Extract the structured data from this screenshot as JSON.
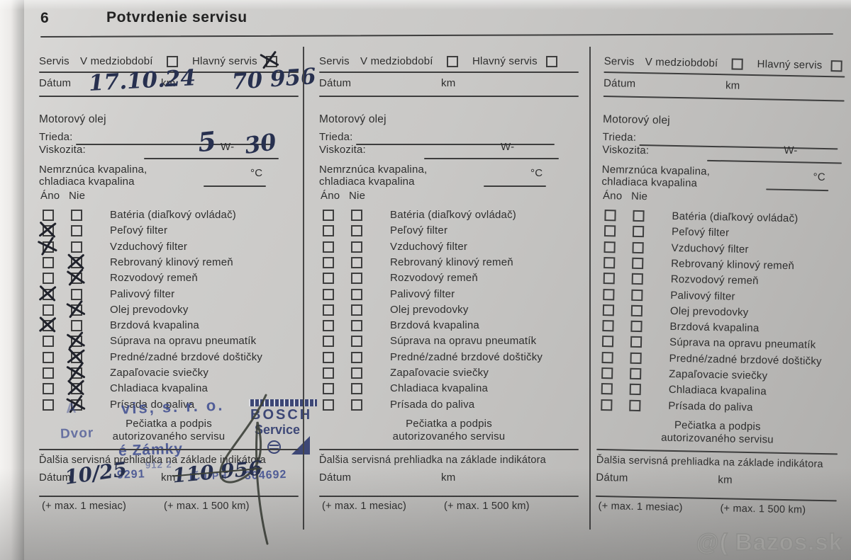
{
  "page": {
    "number": "6",
    "title": "Potvrdenie servisu",
    "watermark": "@( Bazos.sk"
  },
  "labels": {
    "servis": "Servis",
    "v_medziobdobi": "V medziobdobí",
    "hlavny_servis": "Hlavný servis",
    "datum": "Dátum",
    "km": "km",
    "motorovy_olej": "Motorový olej",
    "trieda": "Trieda:",
    "viskozita": "Viskozita:",
    "w": "W-",
    "nemrznuca_1": "Nemrznúca kvapalina,",
    "nemrznuca_2": "chladiaca kvapalina",
    "celsius": "°C",
    "ano": "Áno",
    "nie": "Nie",
    "peciatka_1": "Pečiatka a podpis",
    "peciatka_2": "autorizovaného servisu",
    "dalsia": "Ďalšia servisná prehliadka na základe indikátora",
    "max_mesiac": "(+ max. 1 mesiac)",
    "max_km": "(+ max. 1 500 km)"
  },
  "checklist": [
    "Batéria (diaľkový ovládač)",
    "Peľový filter",
    "Vzduchový filter",
    "Rebrovaný klinový remeň",
    "Rozvodový remeň",
    "Palivový filter",
    "Olej prevodovky",
    "Brzdová kvapalina",
    "Súprava na opravu pneumatík",
    "Predné/zadné brzdové doštičky",
    "Zapaľovacie sviečky",
    "Chladiaca kvapalina",
    "Prísada do paliva"
  ],
  "columns": [
    {
      "medziobdobi_checked": false,
      "hlavny_checked": true,
      "handwriting": {
        "datum": "17.10.24",
        "km": "70 956",
        "viskozita_prefix": "5",
        "viskozita_suffix": "30",
        "next_datum": "10/25",
        "next_km": "110 956"
      },
      "checks": [
        {
          "ano": false,
          "nie": false
        },
        {
          "ano": true,
          "nie": false
        },
        {
          "ano": true,
          "nie": false
        },
        {
          "ano": false,
          "nie": true
        },
        {
          "ano": false,
          "nie": true
        },
        {
          "ano": true,
          "nie": false
        },
        {
          "ano": false,
          "nie": true
        },
        {
          "ano": true,
          "nie": false
        },
        {
          "ano": false,
          "nie": true
        },
        {
          "ano": false,
          "nie": true
        },
        {
          "ano": false,
          "nie": true
        },
        {
          "ano": false,
          "nie": true
        },
        {
          "ano": false,
          "nie": true
        }
      ],
      "stamp": {
        "fragments": [
          "A",
          "vis, s. r. o.",
          "Dvor",
          "é Zámky",
          "912 2",
          "9291",
          "IČ DPH",
          "304692"
        ],
        "logo_line1": "BOSCH",
        "logo_line2": "Service"
      }
    },
    {
      "medziobdobi_checked": false,
      "hlavny_checked": false,
      "handwriting": {},
      "checks": [
        {
          "ano": false,
          "nie": false
        },
        {
          "ano": false,
          "nie": false
        },
        {
          "ano": false,
          "nie": false
        },
        {
          "ano": false,
          "nie": false
        },
        {
          "ano": false,
          "nie": false
        },
        {
          "ano": false,
          "nie": false
        },
        {
          "ano": false,
          "nie": false
        },
        {
          "ano": false,
          "nie": false
        },
        {
          "ano": false,
          "nie": false
        },
        {
          "ano": false,
          "nie": false
        },
        {
          "ano": false,
          "nie": false
        },
        {
          "ano": false,
          "nie": false
        },
        {
          "ano": false,
          "nie": false
        }
      ],
      "stamp": null
    },
    {
      "medziobdobi_checked": false,
      "hlavny_checked": false,
      "handwriting": {},
      "checks": [
        {
          "ano": false,
          "nie": false
        },
        {
          "ano": false,
          "nie": false
        },
        {
          "ano": false,
          "nie": false
        },
        {
          "ano": false,
          "nie": false
        },
        {
          "ano": false,
          "nie": false
        },
        {
          "ano": false,
          "nie": false
        },
        {
          "ano": false,
          "nie": false
        },
        {
          "ano": false,
          "nie": false
        },
        {
          "ano": false,
          "nie": false
        },
        {
          "ano": false,
          "nie": false
        },
        {
          "ano": false,
          "nie": false
        },
        {
          "ano": false,
          "nie": false
        },
        {
          "ano": false,
          "nie": false
        }
      ],
      "stamp": null
    }
  ],
  "colors": {
    "ink": "#27304f",
    "stamp_blue": "#2e3a6e",
    "print": "#2e2e2e",
    "paper": "#c9c8c6"
  }
}
